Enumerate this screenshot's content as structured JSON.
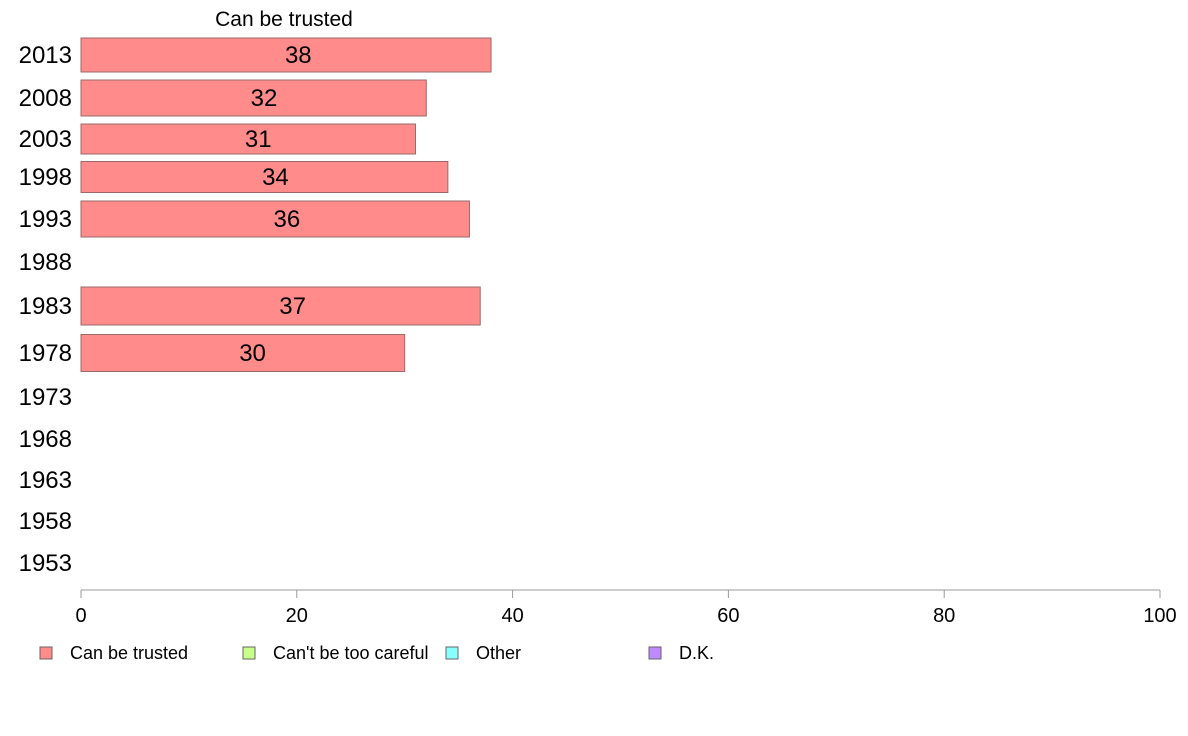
{
  "chart_data": {
    "type": "bar",
    "orientation": "horizontal",
    "title": "Can be trusted",
    "xlabel": "",
    "ylabel": "",
    "xlim": [
      0,
      100
    ],
    "x_ticks": [
      0,
      20,
      40,
      60,
      80,
      100
    ],
    "categories": [
      "2013",
      "2008",
      "2003",
      "1998",
      "1993",
      "1988",
      "1983",
      "1978",
      "1973",
      "1968",
      "1963",
      "1958",
      "1953"
    ],
    "series": [
      {
        "name": "Can be trusted",
        "color": "#ff8b8b",
        "values": [
          38,
          32,
          31,
          34,
          36,
          null,
          37,
          30,
          null,
          null,
          null,
          null,
          null
        ]
      }
    ],
    "legend": {
      "placement": "bottom",
      "items": [
        {
          "label": "Can be trusted",
          "color": "#ff8b8b"
        },
        {
          "label": "Can't be too careful",
          "color": "#c8ff8a"
        },
        {
          "label": "Other",
          "color": "#8affff"
        },
        {
          "label": "D.K.",
          "color": "#c08aff"
        }
      ]
    },
    "grid": false
  }
}
